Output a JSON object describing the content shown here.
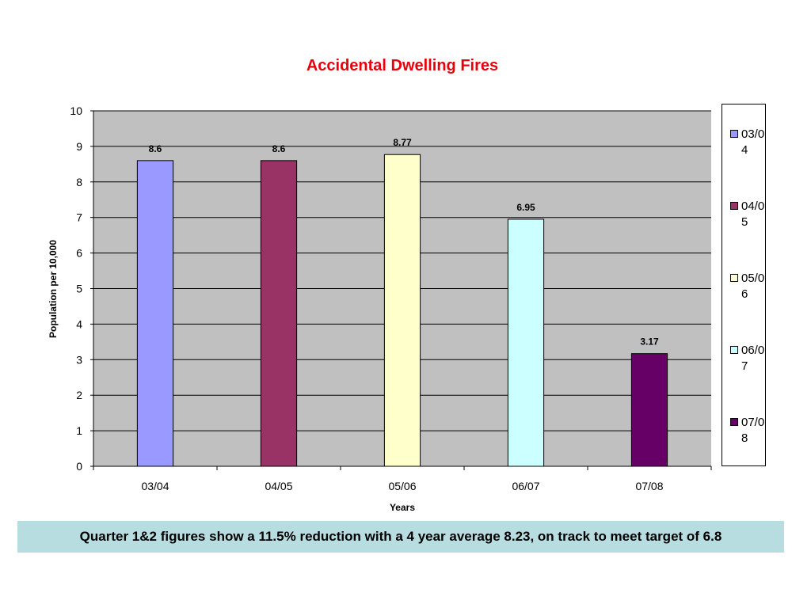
{
  "chart_data": {
    "type": "bar",
    "title": "Accidental Dwelling Fires",
    "xlabel": "Years",
    "ylabel": "Population per 10,000",
    "categories": [
      "03/04",
      "04/05",
      "05/06",
      "06/07",
      "07/08"
    ],
    "values": [
      8.6,
      8.6,
      8.77,
      6.95,
      3.17
    ],
    "value_labels": [
      "8.6",
      "8.6",
      "8.77",
      "6.95",
      "3.17"
    ],
    "colors": [
      "#9999ff",
      "#993366",
      "#ffffcc",
      "#ccffff",
      "#660066"
    ],
    "ylim": [
      0,
      10
    ],
    "yticks": [
      0,
      1,
      2,
      3,
      4,
      5,
      6,
      7,
      8,
      9,
      10
    ],
    "grid": true,
    "plot_background": "#c0c0c0",
    "legend": {
      "position": "right",
      "entries": [
        "03/04",
        "04/05",
        "05/06",
        "06/07",
        "07/08"
      ]
    }
  },
  "footer": {
    "text": "Quarter 1&2 figures show a 11.5% reduction with a 4 year average 8.23, on track to meet target of 6.8",
    "background": "#b7dde1"
  }
}
